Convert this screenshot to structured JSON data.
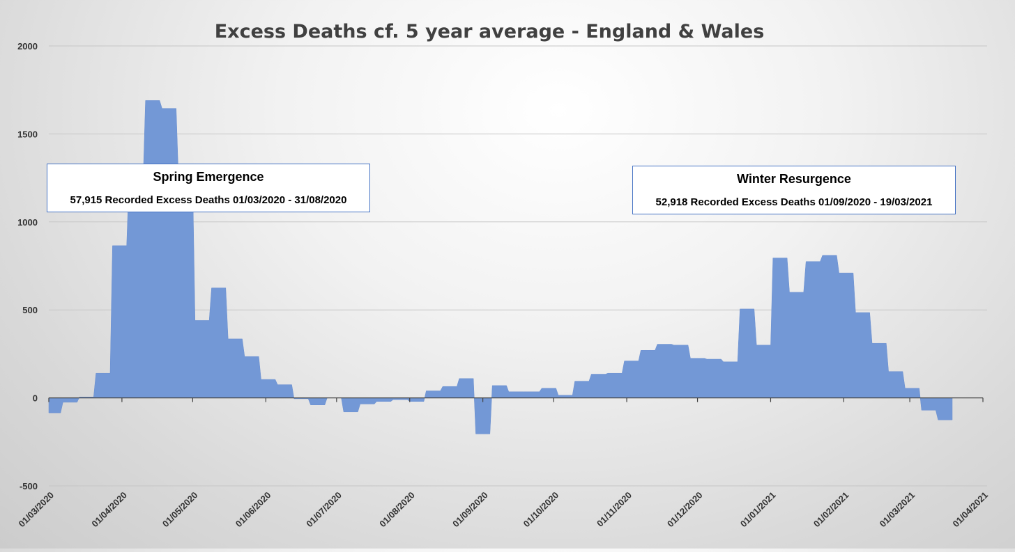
{
  "chart_data": {
    "type": "area",
    "title": "Excess Deaths cf. 5 year average - England & Wales",
    "xlabel": "",
    "ylabel": "",
    "ylim": [
      -500,
      2000
    ],
    "yticks": [
      -500,
      0,
      500,
      1000,
      1500,
      2000
    ],
    "xlim": [
      "2020-03-01",
      "2021-04-01"
    ],
    "xticks": [
      "01/03/2020",
      "01/04/2020",
      "01/05/2020",
      "01/06/2020",
      "01/07/2020",
      "01/08/2020",
      "01/09/2020",
      "01/10/2020",
      "01/11/2020",
      "01/12/2020",
      "01/01/2021",
      "01/02/2021",
      "01/03/2021",
      "01/04/2021"
    ],
    "grid": true,
    "legend": "none",
    "color": "#7398d6",
    "series": [
      {
        "points": [
          [
            "2020-03-01",
            -85
          ],
          [
            "2020-03-06",
            -85
          ],
          [
            "2020-03-07",
            -25
          ],
          [
            "2020-03-13",
            -25
          ],
          [
            "2020-03-14",
            5
          ],
          [
            "2020-03-20",
            5
          ],
          [
            "2020-03-21",
            140
          ],
          [
            "2020-03-27",
            140
          ],
          [
            "2020-03-28",
            865
          ],
          [
            "2020-04-03",
            865
          ],
          [
            "2020-04-04",
            1250
          ],
          [
            "2020-04-10",
            1250
          ],
          [
            "2020-04-11",
            1690
          ],
          [
            "2020-04-17",
            1690
          ],
          [
            "2020-04-18",
            1645
          ],
          [
            "2020-04-24",
            1645
          ],
          [
            "2020-04-25",
            1240
          ],
          [
            "2020-05-01",
            1240
          ],
          [
            "2020-05-02",
            440
          ],
          [
            "2020-05-08",
            440
          ],
          [
            "2020-05-09",
            625
          ],
          [
            "2020-05-15",
            625
          ],
          [
            "2020-05-16",
            335
          ],
          [
            "2020-05-22",
            335
          ],
          [
            "2020-05-23",
            235
          ],
          [
            "2020-05-29",
            235
          ],
          [
            "2020-05-30",
            105
          ],
          [
            "2020-06-05",
            105
          ],
          [
            "2020-06-06",
            75
          ],
          [
            "2020-06-12",
            75
          ],
          [
            "2020-06-13",
            -5
          ],
          [
            "2020-06-19",
            -5
          ],
          [
            "2020-06-20",
            -40
          ],
          [
            "2020-06-26",
            -40
          ],
          [
            "2020-06-27",
            0
          ],
          [
            "2020-07-03",
            0
          ],
          [
            "2020-07-04",
            -80
          ],
          [
            "2020-07-10",
            -80
          ],
          [
            "2020-07-11",
            -35
          ],
          [
            "2020-07-17",
            -35
          ],
          [
            "2020-07-18",
            -20
          ],
          [
            "2020-07-24",
            -20
          ],
          [
            "2020-07-25",
            -10
          ],
          [
            "2020-07-31",
            -10
          ],
          [
            "2020-08-01",
            -20
          ],
          [
            "2020-08-07",
            -20
          ],
          [
            "2020-08-08",
            40
          ],
          [
            "2020-08-14",
            40
          ],
          [
            "2020-08-15",
            65
          ],
          [
            "2020-08-21",
            65
          ],
          [
            "2020-08-22",
            110
          ],
          [
            "2020-08-28",
            110
          ],
          [
            "2020-08-29",
            -205
          ],
          [
            "2020-09-04",
            -205
          ],
          [
            "2020-09-05",
            70
          ],
          [
            "2020-09-11",
            70
          ],
          [
            "2020-09-12",
            35
          ],
          [
            "2020-09-18",
            35
          ],
          [
            "2020-09-19",
            35
          ],
          [
            "2020-09-25",
            35
          ],
          [
            "2020-09-26",
            55
          ],
          [
            "2020-10-02",
            55
          ],
          [
            "2020-10-03",
            15
          ],
          [
            "2020-10-09",
            15
          ],
          [
            "2020-10-10",
            95
          ],
          [
            "2020-10-16",
            95
          ],
          [
            "2020-10-17",
            135
          ],
          [
            "2020-10-23",
            135
          ],
          [
            "2020-10-24",
            140
          ],
          [
            "2020-10-30",
            140
          ],
          [
            "2020-10-31",
            210
          ],
          [
            "2020-11-06",
            210
          ],
          [
            "2020-11-07",
            270
          ],
          [
            "2020-11-13",
            270
          ],
          [
            "2020-11-14",
            305
          ],
          [
            "2020-11-20",
            305
          ],
          [
            "2020-11-21",
            300
          ],
          [
            "2020-11-27",
            300
          ],
          [
            "2020-11-28",
            225
          ],
          [
            "2020-12-04",
            225
          ],
          [
            "2020-12-05",
            220
          ],
          [
            "2020-12-11",
            220
          ],
          [
            "2020-12-12",
            205
          ],
          [
            "2020-12-18",
            205
          ],
          [
            "2020-12-19",
            505
          ],
          [
            "2020-12-25",
            505
          ],
          [
            "2020-12-26",
            300
          ],
          [
            "2021-01-01",
            300
          ],
          [
            "2021-01-02",
            795
          ],
          [
            "2021-01-08",
            795
          ],
          [
            "2021-01-09",
            600
          ],
          [
            "2021-01-15",
            600
          ],
          [
            "2021-01-16",
            775
          ],
          [
            "2021-01-22",
            775
          ],
          [
            "2021-01-23",
            810
          ],
          [
            "2021-01-29",
            810
          ],
          [
            "2021-01-30",
            710
          ],
          [
            "2021-02-05",
            710
          ],
          [
            "2021-02-06",
            485
          ],
          [
            "2021-02-12",
            485
          ],
          [
            "2021-02-13",
            310
          ],
          [
            "2021-02-19",
            310
          ],
          [
            "2021-02-20",
            150
          ],
          [
            "2021-02-26",
            150
          ],
          [
            "2021-02-27",
            55
          ],
          [
            "2021-03-05",
            55
          ],
          [
            "2021-03-06",
            -70
          ],
          [
            "2021-03-12",
            -70
          ],
          [
            "2021-03-13",
            -125
          ],
          [
            "2021-03-19",
            -125
          ]
        ]
      }
    ],
    "annotations": [
      {
        "title": "Spring Emergence",
        "text": "57,915 Recorded Excess Deaths 01/03/2020 - 31/08/2020"
      },
      {
        "title": "Winter Resurgence",
        "text": "52,918 Recorded Excess Deaths 01/09/2020 - 19/03/2021"
      }
    ]
  }
}
